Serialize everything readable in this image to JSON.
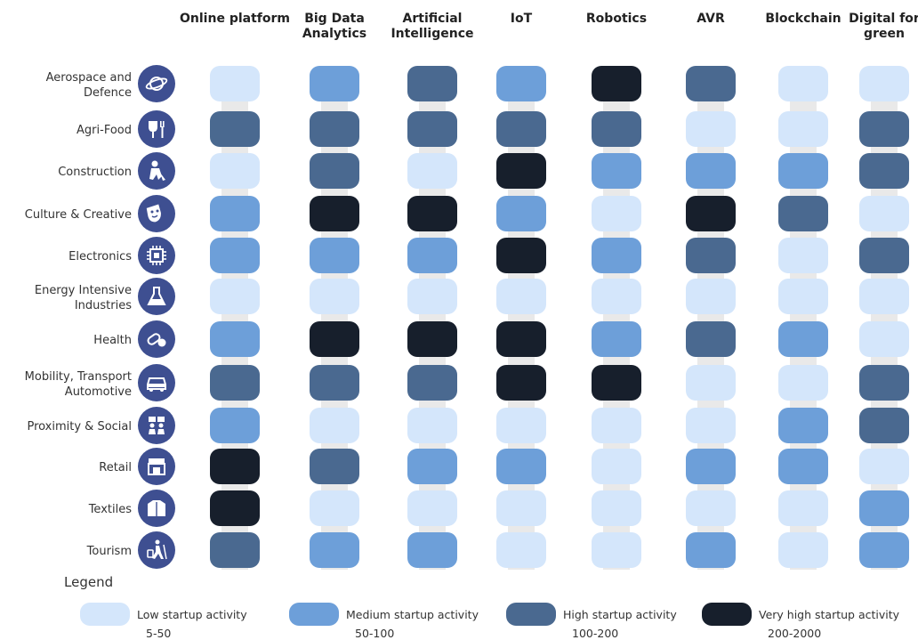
{
  "chart_data": {
    "type": "heatmap",
    "columns": [
      "Online platform",
      "Big Data Analytics",
      "Artificial Intelligence",
      "IoT",
      "Robotics",
      "AVR",
      "Blockchain",
      "Digital for green"
    ],
    "rows": [
      "Aerospace and Defence",
      "Agri-Food",
      "Construction",
      "Culture & Creative",
      "Electronics",
      "Energy Intensive Industries",
      "Health",
      "Mobility, Transport Automotive",
      "Proximity & Social",
      "Retail",
      "Textiles",
      "Tourism"
    ],
    "levels": [
      {
        "label": "Low startup activity",
        "range": "5-50",
        "color": "#d4e6fb"
      },
      {
        "label": "Medium startup activity",
        "range": "50-100",
        "color": "#6d9fd9"
      },
      {
        "label": "High startup activity",
        "range": "100-200",
        "color": "#4a6990"
      },
      {
        "label": "Very high startup activity",
        "range": "200-2000",
        "color": "#171f2c"
      }
    ],
    "values": [
      [
        0,
        1,
        2,
        1,
        3,
        2,
        0,
        0
      ],
      [
        2,
        2,
        2,
        2,
        2,
        0,
        0,
        2
      ],
      [
        0,
        2,
        0,
        3,
        1,
        1,
        1,
        2
      ],
      [
        1,
        3,
        3,
        1,
        0,
        3,
        2,
        0
      ],
      [
        1,
        1,
        1,
        3,
        1,
        2,
        0,
        2
      ],
      [
        0,
        0,
        0,
        0,
        0,
        0,
        0,
        0
      ],
      [
        1,
        3,
        3,
        3,
        1,
        2,
        1,
        0
      ],
      [
        2,
        2,
        2,
        3,
        3,
        0,
        0,
        2
      ],
      [
        1,
        0,
        0,
        0,
        0,
        0,
        1,
        2
      ],
      [
        3,
        2,
        1,
        1,
        0,
        1,
        1,
        0
      ],
      [
        3,
        0,
        0,
        0,
        0,
        0,
        0,
        1
      ],
      [
        2,
        1,
        1,
        0,
        0,
        1,
        0,
        1
      ]
    ],
    "legend_title": "Legend",
    "legend_placement": "bottom",
    "icon_color": "#3e4f91",
    "row_icons": [
      "planet-icon",
      "cutlery-icon",
      "construction-worker-icon",
      "theater-masks-icon",
      "chip-icon",
      "flask-icon",
      "pills-icon",
      "car-icon",
      "people-icon",
      "store-icon",
      "jacket-icon",
      "traveler-icon"
    ]
  }
}
